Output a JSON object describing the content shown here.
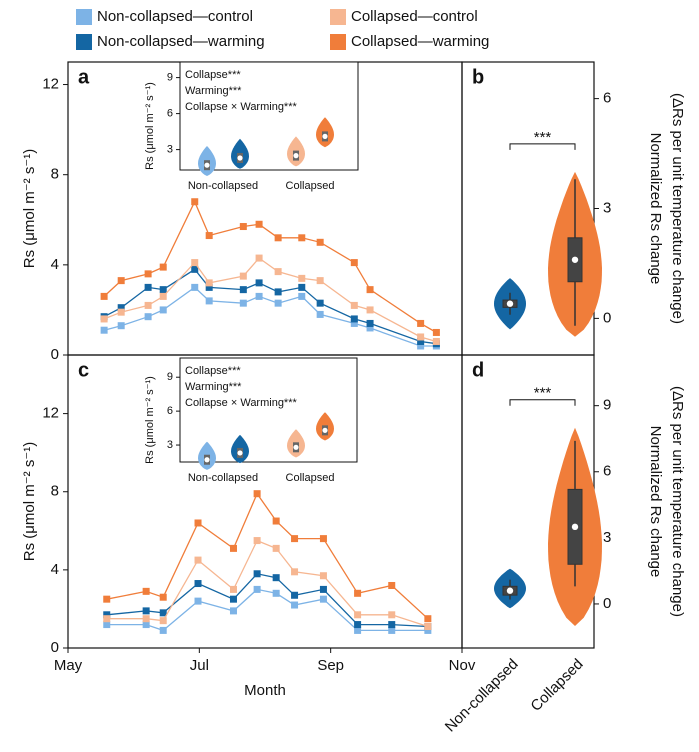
{
  "chart_data": [
    {
      "type": "line",
      "panel": "a",
      "ylabel": "Rs (μmol m⁻² s⁻¹)",
      "x": [
        5.55,
        5.81,
        6.22,
        6.45,
        6.93,
        7.15,
        7.67,
        7.91,
        8.2,
        8.56,
        8.84,
        9.36,
        9.6,
        10.37,
        10.61
      ],
      "xlim": [
        5,
        11
      ],
      "ylim": [
        0,
        13
      ],
      "yticks": [
        0,
        4,
        8,
        12
      ],
      "series": [
        {
          "name": "Non-collapsed—control",
          "color": "#7db3e6",
          "values": [
            1.1,
            1.3,
            1.7,
            2.0,
            3.0,
            2.4,
            2.3,
            2.6,
            2.3,
            2.6,
            1.8,
            1.4,
            1.2,
            0.4,
            0.4
          ]
        },
        {
          "name": "Non-collapsed—warming",
          "color": "#1466a3",
          "values": [
            1.7,
            2.1,
            3.0,
            2.9,
            3.8,
            3.0,
            2.9,
            3.2,
            2.8,
            3.0,
            2.3,
            1.6,
            1.4,
            0.6,
            0.5
          ]
        },
        {
          "name": "Collapsed—control",
          "color": "#f6b691",
          "values": [
            1.6,
            1.9,
            2.2,
            2.6,
            4.1,
            3.2,
            3.5,
            4.3,
            3.7,
            3.4,
            3.3,
            2.2,
            2.0,
            0.8,
            0.6
          ]
        },
        {
          "name": "Collapsed—warming",
          "color": "#f07d3a",
          "values": [
            2.6,
            3.3,
            3.6,
            3.9,
            6.8,
            5.3,
            5.7,
            5.8,
            5.2,
            5.2,
            5.0,
            4.1,
            2.9,
            1.4,
            1.0
          ]
        }
      ],
      "inset": {
        "annotations": [
          "Collapse***",
          "Warming***",
          "Collapse × Warming***"
        ],
        "ylabel": "Rs (μmol m⁻² s⁻¹)",
        "ylim": [
          1.3,
          10.3
        ],
        "yticks": [
          3,
          6,
          9
        ],
        "categories": [
          "Non-collapsed",
          "Collapsed"
        ],
        "medians": [
          1.7,
          2.3,
          2.5,
          4.1
        ]
      }
    },
    {
      "type": "violin",
      "panel": "b",
      "ylabel": [
        "Normalized Rs change",
        "(ΔRs per unit temperature change)"
      ],
      "ylim": [
        -1,
        7
      ],
      "yticks": [
        0,
        3,
        6
      ],
      "annotation": "***",
      "violins": [
        {
          "color": "#1466a3",
          "range": [
            -0.3,
            1.1
          ],
          "min": 0.1,
          "q1": 0.3,
          "median": 0.4,
          "q3": 0.5,
          "max": 0.7
        },
        {
          "color": "#f07d3a",
          "range": [
            -0.5,
            4.0
          ],
          "min": -0.2,
          "q1": 1.0,
          "median": 1.6,
          "q3": 2.2,
          "max": 3.8
        }
      ]
    },
    {
      "type": "line",
      "panel": "c",
      "ylabel": "Rs (μmol m⁻² s⁻¹)",
      "xlabel": "Month",
      "x": [
        5.59,
        6.19,
        6.45,
        6.98,
        7.52,
        7.88,
        8.17,
        8.45,
        8.89,
        9.41,
        9.93,
        10.48
      ],
      "xlim": [
        5,
        11
      ],
      "xticks": [
        {
          "value": 5,
          "label": "May"
        },
        {
          "value": 7,
          "label": "Jul"
        },
        {
          "value": 9,
          "label": "Sep"
        },
        {
          "value": 11,
          "label": "Nov"
        }
      ],
      "ylim": [
        0,
        15
      ],
      "yticks": [
        0,
        4,
        8,
        12
      ],
      "series": [
        {
          "color": "#7db3e6",
          "values": [
            1.2,
            1.2,
            0.9,
            2.4,
            1.9,
            3.0,
            2.8,
            2.2,
            2.5,
            0.9,
            0.9,
            0.9
          ]
        },
        {
          "color": "#1466a3",
          "values": [
            1.7,
            1.9,
            1.8,
            3.3,
            2.5,
            3.8,
            3.6,
            2.7,
            3.0,
            1.2,
            1.2,
            1.1
          ]
        },
        {
          "color": "#f6b691",
          "values": [
            1.5,
            1.5,
            1.4,
            4.5,
            3.0,
            5.5,
            5.1,
            3.9,
            3.7,
            1.7,
            1.7,
            1.1
          ]
        },
        {
          "color": "#f07d3a",
          "values": [
            2.5,
            2.9,
            2.6,
            6.4,
            5.1,
            7.9,
            6.5,
            5.6,
            5.6,
            2.8,
            3.2,
            1.5
          ]
        }
      ],
      "inset": {
        "annotations": [
          "Collapse***",
          "Warming***",
          "Collapse × Warming***"
        ],
        "ylabel": "Rs (μmol m⁻² s⁻¹)",
        "ylim": [
          1.5,
          10.7
        ],
        "yticks": [
          3,
          6,
          9
        ],
        "categories": [
          "Non-collapsed",
          "Collapsed"
        ],
        "medians": [
          1.7,
          2.3,
          2.8,
          4.3
        ]
      }
    },
    {
      "type": "violin",
      "panel": "d",
      "ylabel": [
        "Normalized Rs change",
        "(ΔRs per unit temperature change)"
      ],
      "ylim": [
        -2,
        11.3
      ],
      "yticks": [
        0,
        3,
        6,
        9
      ],
      "annotation": "***",
      "categories": [
        "Non-collapsed",
        "Collapsed"
      ],
      "violins": [
        {
          "color": "#1466a3",
          "range": [
            -0.2,
            1.6
          ],
          "min": 0.2,
          "q1": 0.4,
          "median": 0.6,
          "q3": 0.8,
          "max": 1.1
        },
        {
          "color": "#f07d3a",
          "range": [
            -1.0,
            8.0
          ],
          "min": 0.8,
          "q1": 1.8,
          "median": 3.5,
          "q3": 5.2,
          "max": 7.4
        }
      ]
    }
  ]
}
